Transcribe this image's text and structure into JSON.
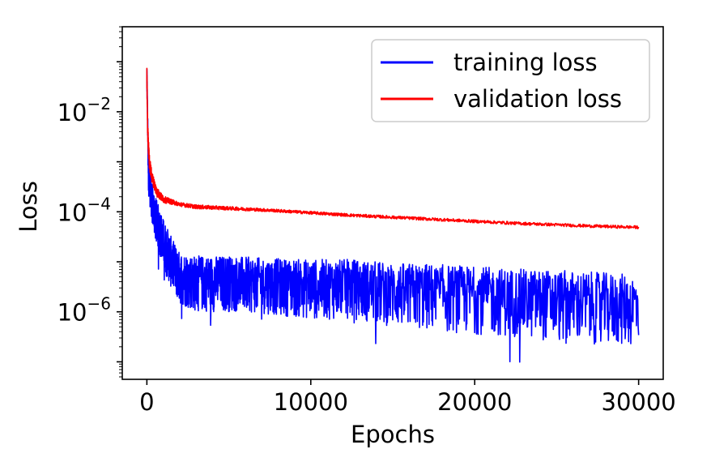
{
  "chart_data": {
    "type": "line",
    "title": "",
    "xlabel": "Epochs",
    "ylabel": "Loss",
    "xlim": [
      -1500,
      31500
    ],
    "ylim_log10": [
      -7.35,
      -0.3
    ],
    "yscale": "log",
    "grid": false,
    "legend_position": "top-right",
    "x_ticks": [
      {
        "value": 0,
        "label": "0"
      },
      {
        "value": 10000,
        "label": "10000"
      },
      {
        "value": 20000,
        "label": "20000"
      },
      {
        "value": 30000,
        "label": "30000"
      }
    ],
    "y_ticks": [
      {
        "log10": -2,
        "base": "10",
        "exponent": "−2"
      },
      {
        "log10": -4,
        "base": "10",
        "exponent": "−4"
      },
      {
        "log10": -6,
        "base": "10",
        "exponent": "−6"
      }
    ],
    "series": [
      {
        "name": "training loss",
        "color": "#0000ff",
        "x": [
          0,
          100,
          300,
          500,
          1000,
          1500,
          2000,
          3000,
          5000,
          7500,
          10000,
          12500,
          15000,
          17500,
          20000,
          22500,
          25000,
          27500,
          30000
        ],
        "log10_center": [
          -1.2,
          -3.2,
          -3.7,
          -4.0,
          -4.5,
          -4.9,
          -5.2,
          -5.3,
          -5.3,
          -5.35,
          -5.4,
          -5.4,
          -5.5,
          -5.55,
          -5.6,
          -5.65,
          -5.7,
          -5.75,
          -5.8
        ],
        "log10_spread": [
          0.3,
          0.45,
          0.5,
          0.55,
          0.6,
          0.65,
          0.65,
          0.7,
          0.7,
          0.7,
          0.75,
          0.75,
          0.8,
          0.85,
          0.85,
          0.85,
          0.9,
          0.9,
          0.9
        ]
      },
      {
        "name": "validation loss",
        "color": "#ff0000",
        "x": [
          0,
          50,
          150,
          300,
          600,
          1000,
          1500,
          2000,
          3000,
          5000,
          7500,
          10000,
          12500,
          15000,
          17500,
          20000,
          22500,
          25000,
          27500,
          30000
        ],
        "log10_center": [
          -1.3,
          -2.4,
          -3.0,
          -3.3,
          -3.6,
          -3.75,
          -3.8,
          -3.85,
          -3.9,
          -3.93,
          -3.97,
          -4.02,
          -4.07,
          -4.11,
          -4.15,
          -4.19,
          -4.23,
          -4.26,
          -4.29,
          -4.31
        ],
        "log10_spread": [
          0.2,
          0.2,
          0.15,
          0.12,
          0.1,
          0.07,
          0.05,
          0.04,
          0.04,
          0.035,
          0.03,
          0.03,
          0.03,
          0.03,
          0.03,
          0.03,
          0.03,
          0.03,
          0.03,
          0.03
        ]
      }
    ]
  }
}
